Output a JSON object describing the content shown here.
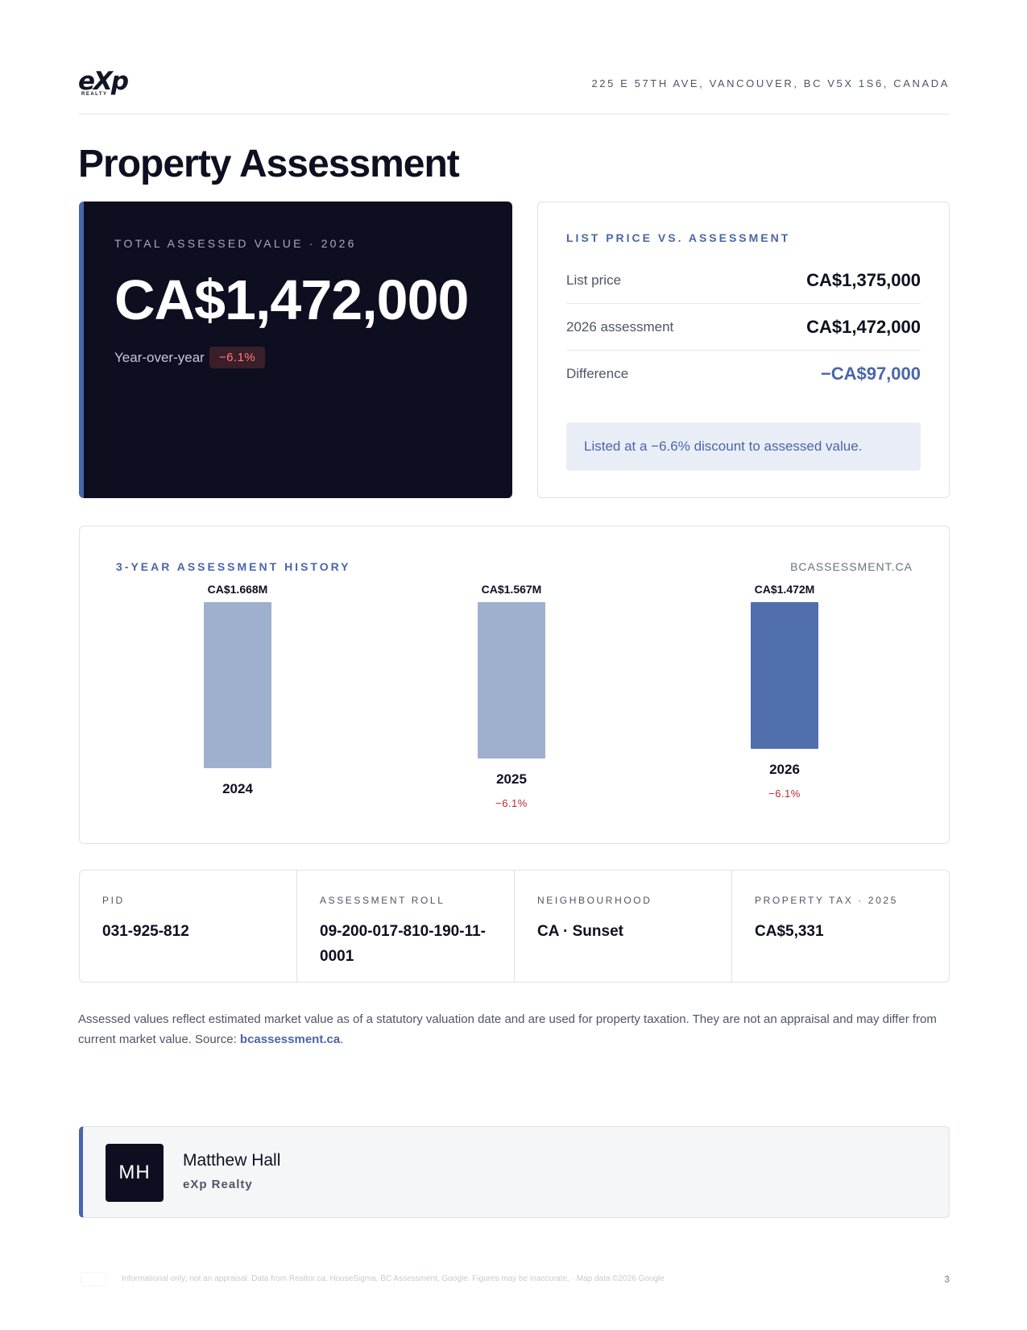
{
  "header": {
    "logo": "eXp",
    "logo_sub": "REALTY",
    "address": "225 E 57TH AVE, VANCOUVER, BC V5X 1S6, CANADA"
  },
  "page_title": "Property Assessment",
  "total_value": {
    "eyebrow": "TOTAL ASSESSED VALUE · 2026",
    "amount": "CA$1,472,000",
    "yoy_label": "Year-over-year",
    "yoy_change": "−6.1%"
  },
  "comparison": {
    "eyebrow": "LIST PRICE VS. ASSESSMENT",
    "rows": [
      {
        "label": "List price",
        "value": "CA$1,375,000"
      },
      {
        "label": "2026 assessment",
        "value": "CA$1,472,000"
      },
      {
        "label": "Difference",
        "value": "−CA$97,000"
      }
    ],
    "note": "Listed at a −6.6% discount to assessed value."
  },
  "history": {
    "eyebrow": "3-YEAR ASSESSMENT HISTORY",
    "source": "BCASSESSMENT.CA",
    "colors": {
      "past": "#9eb0ce",
      "current": "#526fad",
      "negative": "#c0272d"
    }
  },
  "chart_data": {
    "type": "bar",
    "categories": [
      "2024",
      "2025",
      "2026"
    ],
    "values": [
      1.668,
      1.567,
      1.472
    ],
    "value_labels": [
      "CA$1.668M",
      "CA$1.567M",
      "CA$1.472M"
    ],
    "changes": [
      "",
      "−6.1%",
      "−6.1%"
    ],
    "title": "3-YEAR ASSESSMENT HISTORY",
    "xlabel": "",
    "ylabel": ""
  },
  "facts": [
    {
      "label": "PID",
      "value": "031-925-812"
    },
    {
      "label": "ASSESSMENT ROLL",
      "value": "09-200-017-810-190-11-0001"
    },
    {
      "label": "NEIGHBOURHOOD",
      "value": "CA · Sunset"
    },
    {
      "label": "PROPERTY TAX · 2025",
      "value": "CA$5,331"
    }
  ],
  "disclaimer": {
    "text": "Assessed values reflect estimated market value as of a statutory valuation date and are used for property taxation. They are not an appraisal and may differ from current market value. Source: ",
    "link": "bcassessment.ca",
    "end": "."
  },
  "agent": {
    "initials": "MH",
    "name": "Matthew Hall",
    "company": "eXp Realty"
  },
  "footer": {
    "note": "Informational only; not an appraisal. Data from Realtor.ca, HouseSigma, BC Assessment, Google. Figures may be inaccurate. · Map data ©2026 Google",
    "page": "3"
  }
}
